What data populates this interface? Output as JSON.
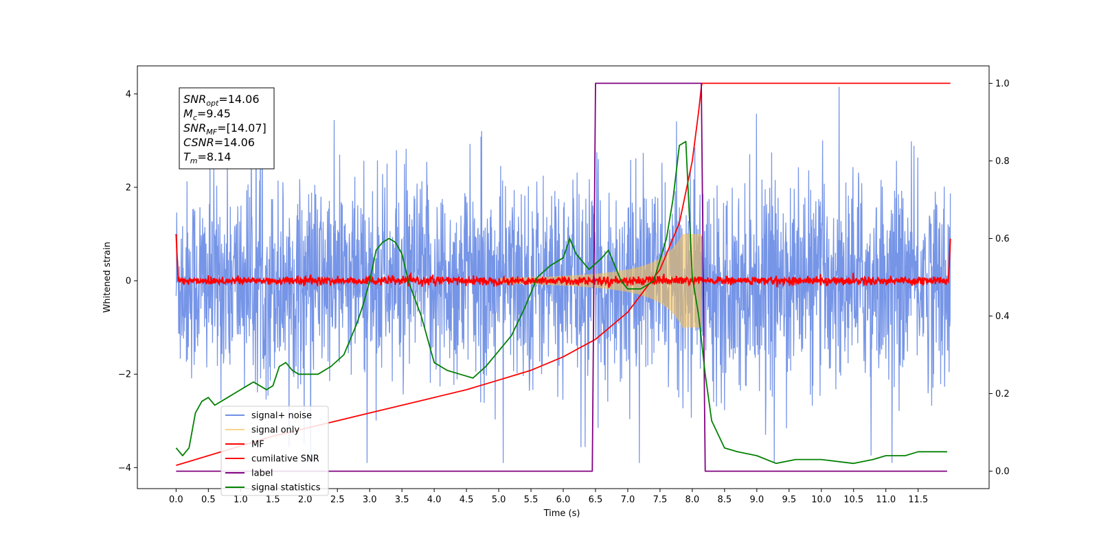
{
  "chart_data": {
    "type": "line",
    "title": "",
    "xlabel": "Time (s)",
    "ylabel": "Whitened strain",
    "y2label": "",
    "xlim": [
      -0.6,
      12.6
    ],
    "ylim": [
      -4.45,
      4.6
    ],
    "y2lim": [
      -0.045,
      1.045
    ],
    "x_ticks": [
      "0.0",
      "0.5",
      "1.0",
      "1.5",
      "2.0",
      "2.5",
      "3.0",
      "3.5",
      "4.0",
      "4.5",
      "5.0",
      "5.5",
      "6.0",
      "6.5",
      "7.0",
      "7.5",
      "8.0",
      "8.5",
      "9.0",
      "9.5",
      "10.0",
      "10.5",
      "11.0",
      "11.5"
    ],
    "y_ticks": [
      "−4",
      "−2",
      "0",
      "2",
      "4"
    ],
    "y2_ticks": [
      "0.0",
      "0.2",
      "0.4",
      "0.6",
      "0.8",
      "1.0"
    ],
    "grid": false,
    "legend_position": "lower-left",
    "annotation": [
      {
        "main": "SNR",
        "sub": "opt",
        "rest": "=14.06"
      },
      {
        "main": "M",
        "sub": "c",
        "rest": "=9.45"
      },
      {
        "main": "SNR",
        "sub": "MF",
        "rest": "=[14.07]"
      },
      {
        "main": "CSNR",
        "sub": "",
        "rest": "=14.06"
      },
      {
        "main": "T",
        "sub": "m",
        "rest": "=8.14"
      }
    ],
    "series": [
      {
        "name": "signal+ noise",
        "color": "#6f8fe6",
        "axis": "left",
        "style": "noise",
        "x_range": [
          0.0,
          12.0
        ],
        "envelope": 2.3
      },
      {
        "name": "signal only",
        "color": "#f5c25a",
        "axis": "left",
        "style": "chirp",
        "x_range": [
          5.0,
          8.14
        ],
        "peak": 1.0
      },
      {
        "name": "MF",
        "color": "#ff0000",
        "axis": "left",
        "style": "mf",
        "x_range": [
          0.0,
          12.0
        ]
      },
      {
        "name": "cumilative SNR",
        "color": "#ff0000",
        "axis": "right",
        "x": [
          0.0,
          0.5,
          1.0,
          1.5,
          2.0,
          2.5,
          3.0,
          3.5,
          4.0,
          4.5,
          5.0,
          5.5,
          6.0,
          6.5,
          7.0,
          7.5,
          7.8,
          8.0,
          8.1,
          8.14,
          8.15,
          9.0,
          10.0,
          11.0,
          12.0
        ],
        "values": [
          0.015,
          0.04,
          0.065,
          0.09,
          0.11,
          0.13,
          0.15,
          0.17,
          0.19,
          0.21,
          0.235,
          0.26,
          0.295,
          0.34,
          0.41,
          0.52,
          0.64,
          0.8,
          0.93,
          0.99,
          1.0,
          1.0,
          1.0,
          1.0,
          1.0
        ]
      },
      {
        "name": "label",
        "color": "#800080",
        "axis": "right",
        "x": [
          0.0,
          6.45,
          6.5,
          8.14,
          8.2,
          11.95
        ],
        "values": [
          0.0,
          0.0,
          1.0,
          1.0,
          0.0,
          0.0
        ]
      },
      {
        "name": "signal statistics",
        "color": "#008000",
        "axis": "right",
        "x": [
          0.0,
          0.1,
          0.2,
          0.3,
          0.4,
          0.5,
          0.6,
          0.7,
          0.8,
          0.9,
          1.0,
          1.1,
          1.2,
          1.3,
          1.4,
          1.5,
          1.6,
          1.7,
          1.8,
          1.9,
          2.0,
          2.2,
          2.4,
          2.6,
          2.8,
          2.9,
          3.0,
          3.1,
          3.2,
          3.3,
          3.4,
          3.5,
          3.6,
          3.8,
          4.0,
          4.2,
          4.4,
          4.6,
          4.8,
          5.0,
          5.2,
          5.4,
          5.6,
          5.8,
          6.0,
          6.1,
          6.2,
          6.4,
          6.6,
          6.7,
          6.9,
          7.0,
          7.2,
          7.4,
          7.6,
          7.7,
          7.8,
          7.9,
          8.0,
          8.1,
          8.2,
          8.3,
          8.5,
          8.7,
          9.0,
          9.3,
          9.6,
          10.0,
          10.5,
          10.8,
          11.0,
          11.3,
          11.5,
          11.8,
          11.95
        ],
        "values": [
          0.06,
          0.04,
          0.06,
          0.15,
          0.18,
          0.19,
          0.17,
          0.18,
          0.19,
          0.2,
          0.21,
          0.22,
          0.23,
          0.22,
          0.21,
          0.22,
          0.27,
          0.28,
          0.26,
          0.25,
          0.25,
          0.25,
          0.27,
          0.3,
          0.38,
          0.43,
          0.49,
          0.57,
          0.59,
          0.6,
          0.59,
          0.56,
          0.49,
          0.4,
          0.28,
          0.26,
          0.25,
          0.24,
          0.27,
          0.31,
          0.35,
          0.42,
          0.5,
          0.53,
          0.55,
          0.6,
          0.56,
          0.52,
          0.55,
          0.57,
          0.49,
          0.47,
          0.47,
          0.49,
          0.6,
          0.7,
          0.84,
          0.85,
          0.5,
          0.4,
          0.25,
          0.13,
          0.06,
          0.05,
          0.04,
          0.02,
          0.03,
          0.03,
          0.02,
          0.03,
          0.04,
          0.04,
          0.05,
          0.05,
          0.05
        ]
      }
    ]
  }
}
